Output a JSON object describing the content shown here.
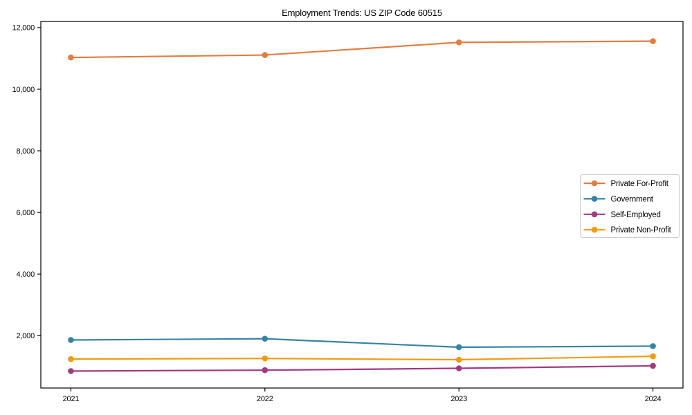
{
  "chart_data": {
    "type": "line",
    "title": "Employment Trends: US ZIP Code 60515",
    "xlabel": "",
    "ylabel": "",
    "x": [
      2021,
      2022,
      2023,
      2024
    ],
    "x_tick_labels": [
      "2021",
      "2022",
      "2023",
      "2024"
    ],
    "series": [
      {
        "name": "Private For-Profit",
        "color": "#e17d3f",
        "values": [
          11030,
          11110,
          11520,
          11560
        ]
      },
      {
        "name": "Government",
        "color": "#3484a4",
        "values": [
          1860,
          1900,
          1625,
          1660
        ]
      },
      {
        "name": "Self-Employed",
        "color": "#a23a80",
        "values": [
          850,
          880,
          940,
          1020
        ]
      },
      {
        "name": "Private Non-Profit",
        "color": "#f39b0f",
        "values": [
          1240,
          1260,
          1220,
          1330
        ]
      }
    ],
    "yticks": [
      2000,
      4000,
      6000,
      8000,
      10000,
      12000
    ],
    "ytick_labels": [
      "2,000",
      "4,000",
      "6,000",
      "8,000",
      "10,000",
      "12,000"
    ],
    "xlim": [
      2020.845,
      2024.155
    ],
    "ylim": [
      300,
      12200
    ],
    "grid": false,
    "legend_position": "center right",
    "legend_border_color": "#cccccc",
    "frame_color": "#000000",
    "background_color": "#ffffff",
    "marker": "circle"
  }
}
